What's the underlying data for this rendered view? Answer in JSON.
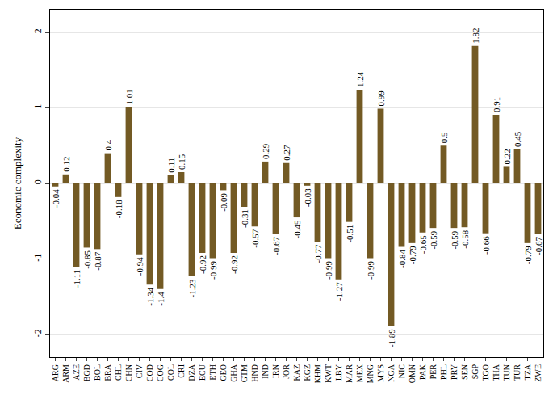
{
  "chart_data": {
    "type": "bar",
    "y_label": "Economic complexity",
    "categories": [
      "ARG",
      "ARM",
      "AZE",
      "BGD",
      "BOL",
      "BRA",
      "CHL",
      "CHN",
      "CIV",
      "COD",
      "COG",
      "COL",
      "CRI",
      "DZA",
      "ECU",
      "ETH",
      "GEO",
      "GHA",
      "GTM",
      "HND",
      "IND",
      "IRN",
      "JOR",
      "KAZ",
      "KGZ",
      "KHM",
      "KWT",
      "LBY",
      "MAR",
      "MEX",
      "MNG",
      "MYS",
      "NGA",
      "NIC",
      "OMN",
      "PAK",
      "PER",
      "PHL",
      "PRY",
      "SEN",
      "SGP",
      "TGO",
      "THA",
      "TUN",
      "TUR",
      "TZA",
      "ZWE"
    ],
    "values": [
      -0.04,
      0.12,
      -1.11,
      -0.85,
      -0.87,
      0.4,
      -0.18,
      1.01,
      -0.94,
      -1.34,
      -1.4,
      0.11,
      0.15,
      -1.23,
      -0.92,
      -0.99,
      -0.09,
      -0.92,
      -0.31,
      -0.57,
      0.29,
      -0.67,
      0.27,
      -0.45,
      -0.03,
      -0.77,
      -0.99,
      -1.27,
      -0.51,
      1.24,
      -0.99,
      0.99,
      -1.89,
      -0.84,
      -0.79,
      -0.65,
      -0.59,
      0.5,
      -0.59,
      -0.58,
      1.82,
      -0.66,
      0.91,
      0.22,
      0.45,
      -0.79,
      -0.67
    ],
    "color": "#735a24",
    "ylim": [
      -2.3,
      2.3
    ],
    "yticks": [
      -2,
      -1,
      0,
      1,
      2
    ],
    "grid": true,
    "data_labels": true
  }
}
